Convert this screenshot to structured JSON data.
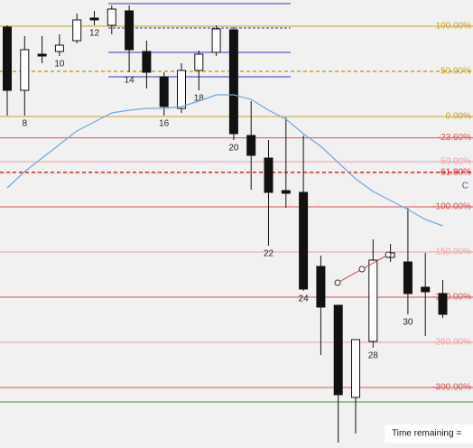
{
  "chart_data": {
    "type": "candlestick",
    "categories": [
      null,
      "8",
      null,
      "10",
      null,
      "12",
      null,
      "14",
      null,
      "16",
      null,
      "18",
      null,
      "20",
      null,
      "22",
      null,
      "24",
      null,
      null,
      null,
      "28",
      null,
      "30",
      null,
      null
    ],
    "open": [
      99,
      29,
      69,
      72,
      84,
      109,
      101,
      117,
      72,
      44,
      9,
      51,
      71,
      96,
      -21,
      -46,
      -82,
      -84,
      -166,
      -209,
      -311,
      -249,
      -156,
      -161,
      -189,
      -196
    ],
    "close": [
      29,
      74,
      67,
      79,
      107,
      107,
      119,
      74,
      49,
      11,
      51,
      69,
      97,
      -19,
      -43,
      -84,
      -85,
      -191,
      -211,
      -308,
      -247,
      -159,
      -151,
      -196,
      -194,
      -219
    ],
    "high": [
      101,
      89,
      89,
      91,
      114,
      117,
      123,
      123,
      84,
      49,
      59,
      73,
      101,
      99,
      17,
      -26,
      -1,
      -21,
      -154,
      -209,
      -247,
      -136,
      -141,
      -101,
      -151,
      -181
    ],
    "low": [
      1,
      1,
      59,
      67,
      81,
      101,
      91,
      49,
      31,
      1,
      4,
      29,
      67,
      -26,
      -81,
      -143,
      -101,
      -193,
      -264,
      -361,
      -351,
      -256,
      -161,
      -219,
      -243,
      -223
    ],
    "moving_average": [
      -79,
      -61,
      -46,
      -31,
      -16,
      -6,
      4,
      7,
      9,
      9,
      11,
      17,
      24,
      24,
      19,
      7,
      -3,
      -19,
      -33,
      -51,
      -69,
      -83,
      -93,
      -103,
      -114,
      -121
    ],
    "ma_color": "#6fa8dc",
    "ylim": [
      -367,
      129
    ],
    "yticks": [
      {
        "value": 100,
        "label": "100.00%"
      },
      {
        "value": 50,
        "label": "50.00%"
      },
      {
        "value": 0,
        "label": "0.00%"
      },
      {
        "value": -23.6,
        "label": "-23.60%"
      },
      {
        "value": -50,
        "label": "-50.00%"
      },
      {
        "value": -61.8,
        "label": "-61.80%"
      },
      {
        "value": -100,
        "label": "-100.00%"
      },
      {
        "value": -150,
        "label": "-150.00%"
      },
      {
        "value": -200,
        "label": "-200.00%"
      },
      {
        "value": -250,
        "label": "-250.00%"
      },
      {
        "value": -300,
        "label": "-300.00%"
      }
    ],
    "tick_colors": [
      "#c9a227",
      "#c9a227",
      "#c9a227",
      "#e05050",
      "#f0a0a0",
      "#e02020",
      "#e05050",
      "#f0a0a0",
      "#e05050",
      "#f0a0a0",
      "#e05050"
    ],
    "tick_dash": [
      false,
      true,
      false,
      false,
      false,
      true,
      false,
      false,
      false,
      false,
      false
    ],
    "annotation": "C",
    "footer": "Time remaining ="
  }
}
